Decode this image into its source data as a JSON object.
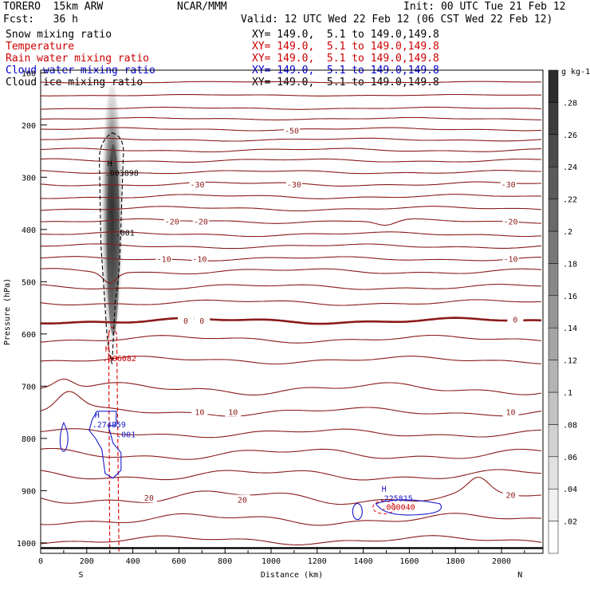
{
  "header": {
    "model": "TORERO  15km ARW",
    "org": "NCAR/MMM",
    "init": "Init: 00 UTC Tue 21 Feb 12",
    "fcst": "Fcst:   36 h",
    "valid": "Valid: 12 UTC Wed 22 Feb 12 (06 CST Wed 22 Feb 12)"
  },
  "fields": [
    {
      "name": "Snow mixing ratio",
      "xy": "XY= 149.0,  5.1 to 149.0,149.8",
      "color": "#000000"
    },
    {
      "name": "Temperature",
      "xy": "XY= 149.0,  5.1 to 149.0,149.8",
      "color": "#cc0000"
    },
    {
      "name": "Rain water mixing ratio",
      "xy": "XY= 149.0,  5.1 to 149.0,149.8",
      "color": "#cc0000"
    },
    {
      "name": "Cloud water mixing ratio",
      "xy": "XY= 149.0,  5.1 to 149.0,149.8",
      "color": "#0000cc"
    },
    {
      "name": "Cloud ice mixing ratio",
      "xy": "XY= 149.0,  5.1 to 149.0,149.8",
      "color": "#000000"
    }
  ],
  "chart_data": {
    "type": "contour-cross-section",
    "xlabel": "Distance (km)",
    "ylabel": "Pressure (hPa)",
    "xlim": [
      0,
      2180
    ],
    "ylim": [
      1020,
      95
    ],
    "x_ticks": [
      0,
      200,
      400,
      600,
      800,
      1000,
      1200,
      1400,
      1600,
      1800,
      2000
    ],
    "y_ticks": [
      100,
      200,
      300,
      400,
      500,
      600,
      700,
      800,
      900,
      1000
    ],
    "x_end_labels": {
      "left": "S",
      "right": "N"
    },
    "colorbar": {
      "unit": "g kg-1",
      "ticks": [
        ".02",
        ".04",
        ".06",
        ".08",
        ".1",
        ".12",
        ".14",
        ".16",
        ".18",
        ".2",
        ".22",
        ".24",
        ".26",
        ".28"
      ]
    },
    "temperature_isotherm_labels": [
      {
        "text": "-50",
        "x": 1090,
        "p": 210
      },
      {
        "text": "-30",
        "x": 680,
        "p": 313
      },
      {
        "text": "-30",
        "x": 1100,
        "p": 313
      },
      {
        "text": "-30",
        "x": 2030,
        "p": 313
      },
      {
        "text": "-20",
        "x": 570,
        "p": 384
      },
      {
        "text": "-20",
        "x": 695,
        "p": 384
      },
      {
        "text": "-20",
        "x": 2040,
        "p": 384
      },
      {
        "text": "-10",
        "x": 535,
        "p": 456
      },
      {
        "text": "-10",
        "x": 690,
        "p": 456
      },
      {
        "text": "-10",
        "x": 2040,
        "p": 456
      },
      {
        "text": "0",
        "x": 630,
        "p": 574
      },
      {
        "text": "0",
        "x": 700,
        "p": 574
      },
      {
        "text": "0",
        "x": 2060,
        "p": 572
      },
      {
        "text": "10",
        "x": 690,
        "p": 749
      },
      {
        "text": "10",
        "x": 835,
        "p": 749
      },
      {
        "text": "10",
        "x": 2040,
        "p": 749
      },
      {
        "text": "20",
        "x": 470,
        "p": 913
      },
      {
        "text": "20",
        "x": 875,
        "p": 917
      },
      {
        "text": "20",
        "x": 2040,
        "p": 908
      }
    ],
    "maxima": [
      {
        "field": "Cloud ice mixing ratio",
        "label": "H",
        "value": ".003898",
        "x": 300,
        "p": 297
      },
      {
        "field": "Cloud ice mixing ratio",
        "label": "",
        "value": ".001",
        "x": 345,
        "p": 412
      },
      {
        "field": "Rain water mixing ratio",
        "label": "H",
        "value": ".006082",
        "x": 290,
        "p": 652
      },
      {
        "field": "Cloud water mixing ratio",
        "label": "H",
        "value": ".274859",
        "x": 245,
        "p": 779
      },
      {
        "field": "Cloud water mixing ratio",
        "label": "",
        "value": ".001",
        "x": 350,
        "p": 798
      },
      {
        "field": "Cloud water mixing ratio",
        "label": "H",
        "value": ".225815",
        "x": 1490,
        "p": 920
      },
      {
        "field": "Rain water mixing ratio",
        "label": "",
        "value": ".000040",
        "x": 1500,
        "p": 937
      }
    ]
  }
}
